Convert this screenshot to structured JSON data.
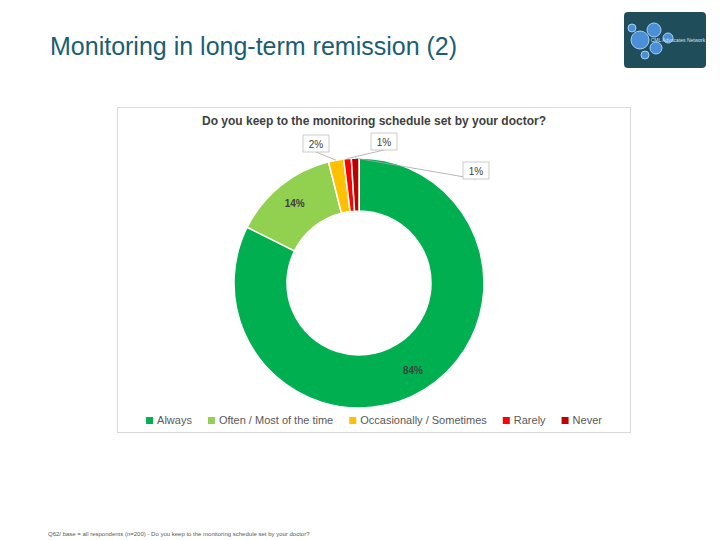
{
  "header": {
    "title": "Monitoring in long-term remission (2)",
    "logo_text": "CML Advocates Network"
  },
  "chart_data": {
    "type": "donut",
    "title": "Do you keep to the monitoring schedule set by your doctor?",
    "categories": [
      "Always",
      "Often / Most of the time",
      "Occasionally / Sometimes",
      "Rarely",
      "Never"
    ],
    "values": [
      84,
      14,
      2,
      1,
      1
    ],
    "value_labels": [
      "84%",
      "14%",
      "2%",
      "1%",
      "1%"
    ],
    "colors": [
      "#00b050",
      "#92d050",
      "#ffc000",
      "#ff0000",
      "#c00000"
    ],
    "data_labels": true,
    "legend": "bottom"
  },
  "footnote": "Q62/ base = all respondents (n=200) - Do you keep to the monitoring schedule set by your doctor?"
}
